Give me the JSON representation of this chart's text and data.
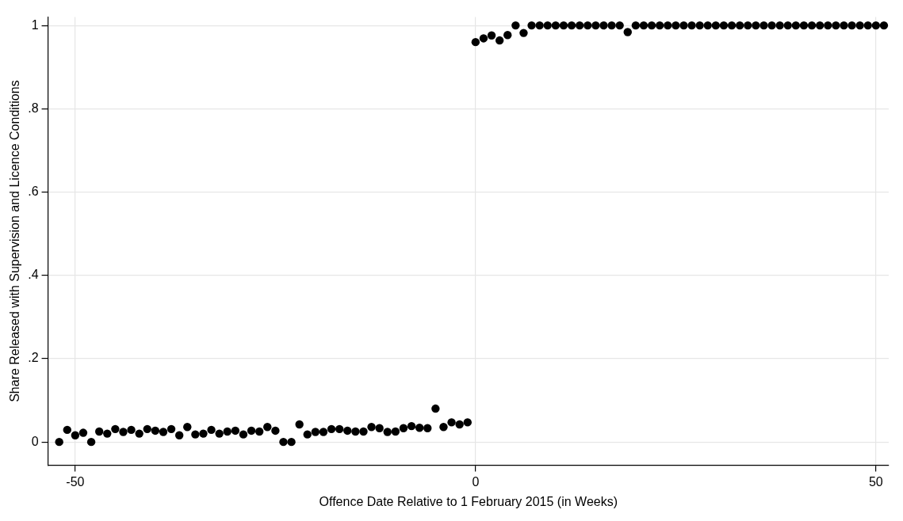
{
  "chart_data": {
    "type": "scatter",
    "xlabel": "Offence Date Relative to 1 February 2015 (in Weeks)",
    "ylabel": "Share Released with Supervision and Licence Conditions",
    "x": [
      -52,
      -51,
      -50,
      -49,
      -48,
      -47,
      -46,
      -45,
      -44,
      -43,
      -42,
      -41,
      -40,
      -39,
      -38,
      -37,
      -36,
      -35,
      -34,
      -33,
      -32,
      -31,
      -30,
      -29,
      -28,
      -27,
      -26,
      -25,
      -24,
      -23,
      -22,
      -21,
      -20,
      -19,
      -18,
      -17,
      -16,
      -15,
      -14,
      -13,
      -12,
      -11,
      -10,
      -9,
      -8,
      -7,
      -6,
      -5,
      -4,
      -3,
      -2,
      -1,
      0,
      1,
      2,
      3,
      4,
      5,
      6,
      7,
      8,
      9,
      10,
      11,
      12,
      13,
      14,
      15,
      16,
      17,
      18,
      19,
      20,
      21,
      22,
      23,
      24,
      25,
      26,
      27,
      28,
      29,
      30,
      31,
      32,
      33,
      34,
      35,
      36,
      37,
      38,
      39,
      40,
      41,
      42,
      43,
      44,
      45,
      46,
      47,
      48,
      49,
      50,
      51
    ],
    "series": [
      {
        "color": "#000000",
        "values": [
          0,
          0.029,
          0.016,
          0.022,
          0,
          0.025,
          0.02,
          0.031,
          0.024,
          0.029,
          0.02,
          0.031,
          0.027,
          0.024,
          0.031,
          0.016,
          0.036,
          0.018,
          0.02,
          0.029,
          0.02,
          0.025,
          0.027,
          0.018,
          0.027,
          0.025,
          0.036,
          0.027,
          0,
          0,
          0.042,
          0.018,
          0.024,
          0.024,
          0.031,
          0.031,
          0.027,
          0.025,
          0.025,
          0.036,
          0.033,
          0.024,
          0.025,
          0.033,
          0.038,
          0.034,
          0.033,
          0.08,
          0.036,
          0.047,
          0.042,
          0.047,
          0.96,
          0.969,
          0.976,
          0.964,
          0.977,
          1,
          0.982,
          1,
          1,
          1,
          1,
          1,
          1,
          1,
          1,
          1,
          1,
          1,
          1,
          0.984,
          1,
          1,
          1,
          1,
          1,
          1,
          1,
          1,
          1,
          1,
          1,
          1,
          1,
          1,
          1,
          1,
          1,
          1,
          1,
          1,
          1,
          1,
          1,
          1,
          1,
          1,
          1,
          1,
          1,
          1,
          1,
          1
        ]
      }
    ],
    "xlim": [
      -53.4,
      51.6
    ],
    "ylim": [
      -0.056,
      1.02
    ],
    "xticks": [
      -50,
      0,
      50
    ],
    "yticks": [
      0,
      {
        "value": 0.2,
        "label": ".2"
      },
      {
        "value": 0.4,
        "label": ".4"
      },
      {
        "value": 0.6,
        "label": ".6"
      },
      {
        "value": 0.8,
        "label": ".8"
      },
      1
    ],
    "grid": true,
    "legend": false,
    "marker": "circle"
  }
}
